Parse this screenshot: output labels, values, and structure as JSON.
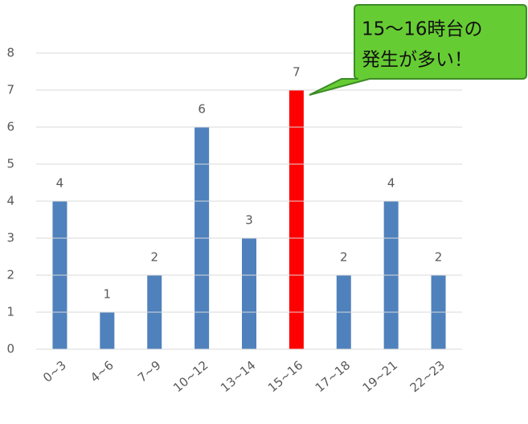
{
  "chart_data": {
    "type": "bar",
    "categories": [
      "0~3",
      "4~6",
      "7~9",
      "10~12",
      "13~14",
      "15~16",
      "17~18",
      "19~21",
      "22~23"
    ],
    "values": [
      4,
      1,
      2,
      6,
      3,
      7,
      2,
      4,
      2
    ],
    "colors": [
      "#4f81bd",
      "#4f81bd",
      "#4f81bd",
      "#4f81bd",
      "#4f81bd",
      "#ff0000",
      "#4f81bd",
      "#4f81bd",
      "#4f81bd"
    ],
    "ylim": [
      0,
      8
    ],
    "yticks": [
      0,
      1,
      2,
      3,
      4,
      5,
      6,
      7,
      8
    ],
    "grid": true,
    "annotation": [
      "15～16時台の",
      "発生が多い！"
    ]
  }
}
